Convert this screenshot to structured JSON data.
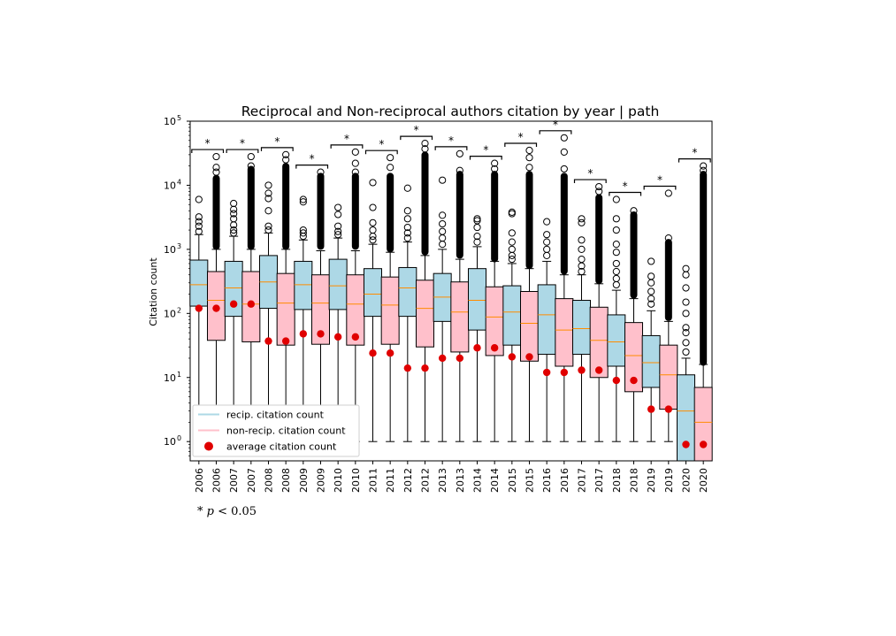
{
  "chart_data": {
    "type": "box",
    "title": "Reciprocal and Non-reciprocal authors citation by year | path",
    "ylabel": "Citation count",
    "xlabel": "",
    "y_scale": "log",
    "ylim": [
      0.5,
      100000
    ],
    "y_ticks": [
      {
        "value": 1,
        "label": "10",
        "exp": "0"
      },
      {
        "value": 10,
        "label": "10",
        "exp": "1"
      },
      {
        "value": 100,
        "label": "10",
        "exp": "2"
      },
      {
        "value": 1000,
        "label": "10",
        "exp": "3"
      },
      {
        "value": 10000,
        "label": "10",
        "exp": "4"
      },
      {
        "value": 100000,
        "label": "10",
        "exp": "5"
      }
    ],
    "categories": [
      "2006",
      "2006",
      "2007",
      "2007",
      "2008",
      "2008",
      "2009",
      "2009",
      "2010",
      "2010",
      "2011",
      "2011",
      "2012",
      "2012",
      "2013",
      "2013",
      "2014",
      "2014",
      "2015",
      "2015",
      "2016",
      "2016",
      "2017",
      "2017",
      "2018",
      "2018",
      "2019",
      "2019",
      "2020",
      "2020"
    ],
    "series": [
      {
        "name": "recip. citation count",
        "color": "#add8e6",
        "boxes": [
          {
            "year": "2006",
            "whislo": 1,
            "q1": 130,
            "med": 280,
            "q3": 680,
            "whishi": 1700,
            "mean": 120,
            "fliers": [
              1900,
              2300,
              2700,
              3200,
              6000
            ]
          },
          {
            "year": "2007",
            "whislo": 1,
            "q1": 90,
            "med": 250,
            "q3": 650,
            "whishi": 1600,
            "mean": 140,
            "fliers": [
              1800,
              2000,
              2400,
              3000,
              3600,
              4200,
              5200
            ]
          },
          {
            "year": "2008",
            "whislo": 1,
            "q1": 120,
            "med": 310,
            "q3": 800,
            "whishi": 1800,
            "mean": 37,
            "fliers": [
              2000,
              2300,
              4000,
              6200,
              7500,
              10000
            ]
          },
          {
            "year": "2009",
            "whislo": 1,
            "q1": 115,
            "med": 280,
            "q3": 650,
            "whishi": 1400,
            "mean": 48,
            "fliers": [
              1600,
              1800,
              2000,
              5500,
              6000
            ]
          },
          {
            "year": "2010",
            "whislo": 1,
            "q1": 115,
            "med": 270,
            "q3": 700,
            "whishi": 1500,
            "mean": 43,
            "fliers": [
              1700,
              1900,
              2300,
              3500,
              4500
            ]
          },
          {
            "year": "2011",
            "whislo": 1,
            "q1": 90,
            "med": 200,
            "q3": 500,
            "whishi": 1200,
            "mean": 24,
            "fliers": [
              1400,
              1600,
              2000,
              2600,
              4500,
              11000
            ]
          },
          {
            "year": "2012",
            "whislo": 1,
            "q1": 90,
            "med": 250,
            "q3": 520,
            "whishi": 1300,
            "mean": 14,
            "fliers": [
              1500,
              1800,
              2200,
              3000,
              4000,
              9000
            ]
          },
          {
            "year": "2013",
            "whislo": 1,
            "q1": 75,
            "med": 180,
            "q3": 420,
            "whishi": 1000,
            "mean": 20,
            "fliers": [
              1200,
              1500,
              1900,
              2500,
              3400,
              12000
            ]
          },
          {
            "year": "2014",
            "whislo": 1,
            "q1": 55,
            "med": 160,
            "q3": 500,
            "whishi": 1100,
            "mean": 29,
            "fliers": [
              1300,
              1600,
              2200,
              2800,
              3000
            ]
          },
          {
            "year": "2015",
            "whislo": 1,
            "q1": 32,
            "med": 105,
            "q3": 270,
            "whishi": 600,
            "mean": 21,
            "fliers": [
              700,
              800,
              1000,
              1300,
              1800,
              3600,
              3800
            ]
          },
          {
            "year": "2016",
            "whislo": 1,
            "q1": 23,
            "med": 95,
            "q3": 280,
            "whishi": 650,
            "mean": 12,
            "fliers": [
              800,
              1000,
              1300,
              1700,
              2700
            ]
          },
          {
            "year": "2017",
            "whislo": 1,
            "q1": 23,
            "med": 58,
            "q3": 160,
            "whishi": 400,
            "mean": 13,
            "fliers": [
              450,
              550,
              700,
              1000,
              1400,
              2600,
              3000
            ]
          },
          {
            "year": "2018",
            "whislo": 1,
            "q1": 15,
            "med": 36,
            "q3": 95,
            "whishi": 230,
            "mean": 9,
            "fliers": [
              280,
              350,
              450,
              600,
              900,
              1200,
              2000,
              3000,
              6000
            ]
          },
          {
            "year": "2019",
            "whislo": 1,
            "q1": 7,
            "med": 17,
            "q3": 45,
            "whishi": 110,
            "mean": 3.2,
            "fliers": [
              140,
              170,
              220,
              300,
              380,
              650
            ]
          },
          {
            "year": "2020",
            "whislo": 0.5,
            "q1": 0.5,
            "med": 3,
            "q3": 11,
            "whishi": 20,
            "mean": 0.9,
            "fliers": [
              25,
              35,
              50,
              60,
              100,
              150,
              250,
              400,
              500
            ]
          }
        ]
      },
      {
        "name": "non-recip. citation count",
        "color": "#ffc0cb",
        "boxes": [
          {
            "year": "2006",
            "whislo": 1,
            "q1": 38,
            "med": 160,
            "q3": 450,
            "whishi": 1000,
            "mean": 120,
            "flier_range": [
              1100,
              13000
            ],
            "fliers": [
              16000,
              19000,
              28000
            ]
          },
          {
            "year": "2007",
            "whislo": 1,
            "q1": 36,
            "med": 140,
            "q3": 450,
            "whishi": 1000,
            "mean": 140,
            "flier_range": [
              1100,
              18000
            ],
            "fliers": [
              20000,
              28000
            ]
          },
          {
            "year": "2008",
            "whislo": 1,
            "q1": 32,
            "med": 145,
            "q3": 420,
            "whishi": 1000,
            "mean": 37,
            "flier_range": [
              1100,
              20000
            ],
            "fliers": [
              25000,
              30000
            ]
          },
          {
            "year": "2009",
            "whislo": 1,
            "q1": 33,
            "med": 145,
            "q3": 400,
            "whishi": 950,
            "mean": 48,
            "flier_range": [
              1100,
              14000
            ],
            "fliers": [
              16000
            ]
          },
          {
            "year": "2010",
            "whislo": 1,
            "q1": 32,
            "med": 140,
            "q3": 400,
            "whishi": 950,
            "mean": 43,
            "flier_range": [
              1100,
              14000
            ],
            "fliers": [
              16000,
              22000,
              33000
            ]
          },
          {
            "year": "2011",
            "whislo": 1,
            "q1": 33,
            "med": 135,
            "q3": 370,
            "whishi": 900,
            "mean": 24,
            "flier_range": [
              1000,
              14000
            ],
            "fliers": [
              19000,
              27000
            ]
          },
          {
            "year": "2012",
            "whislo": 1,
            "q1": 30,
            "med": 120,
            "q3": 330,
            "whishi": 800,
            "mean": 14,
            "flier_range": [
              900,
              30000
            ],
            "fliers": [
              37000,
              45000
            ]
          },
          {
            "year": "2013",
            "whislo": 1,
            "q1": 25,
            "med": 105,
            "q3": 310,
            "whishi": 700,
            "mean": 20,
            "flier_range": [
              800,
              15000
            ],
            "fliers": [
              17000,
              31000
            ]
          },
          {
            "year": "2014",
            "whislo": 1,
            "q1": 22,
            "med": 88,
            "q3": 260,
            "whishi": 650,
            "mean": 29,
            "flier_range": [
              700,
              15000
            ],
            "fliers": [
              18000,
              22000
            ]
          },
          {
            "year": "2015",
            "whislo": 1,
            "q1": 18,
            "med": 70,
            "q3": 220,
            "whishi": 500,
            "mean": 21,
            "flier_range": [
              550,
              15000
            ],
            "fliers": [
              19000,
              27000,
              35000
            ]
          },
          {
            "year": "2016",
            "whislo": 1,
            "q1": 15,
            "med": 55,
            "q3": 170,
            "whishi": 400,
            "mean": 12,
            "flier_range": [
              450,
              14000
            ],
            "fliers": [
              18000,
              33000,
              55000
            ]
          },
          {
            "year": "2017",
            "whislo": 1,
            "q1": 10,
            "med": 38,
            "q3": 125,
            "whishi": 290,
            "mean": 13,
            "flier_range": [
              320,
              6500
            ],
            "fliers": [
              8000,
              9500
            ]
          },
          {
            "year": "2018",
            "whislo": 1,
            "q1": 6,
            "med": 22,
            "q3": 72,
            "whishi": 170,
            "mean": 9,
            "flier_range": [
              190,
              3500
            ],
            "fliers": [
              4000
            ]
          },
          {
            "year": "2019",
            "whislo": 1,
            "q1": 3.2,
            "med": 11,
            "q3": 32,
            "whishi": 75,
            "mean": 3.2,
            "flier_range": [
              85,
              1300
            ],
            "fliers": [
              1500,
              7500
            ]
          },
          {
            "year": "2020",
            "whislo": 0.5,
            "q1": 0.5,
            "med": 2,
            "q3": 7,
            "whishi": 16,
            "mean": 0.9,
            "flier_range": [
              17,
              15000
            ],
            "fliers": [
              17000,
              20000
            ]
          }
        ]
      }
    ],
    "mean_marker": {
      "name": "average citation count",
      "color": "#e00000"
    },
    "median_color": "#ff8c00",
    "significance_label": "*",
    "legend": {
      "placement": "lower-left"
    },
    "footnote": {
      "prefix": "*",
      "p": "p",
      "rest": " < 0.05"
    }
  }
}
